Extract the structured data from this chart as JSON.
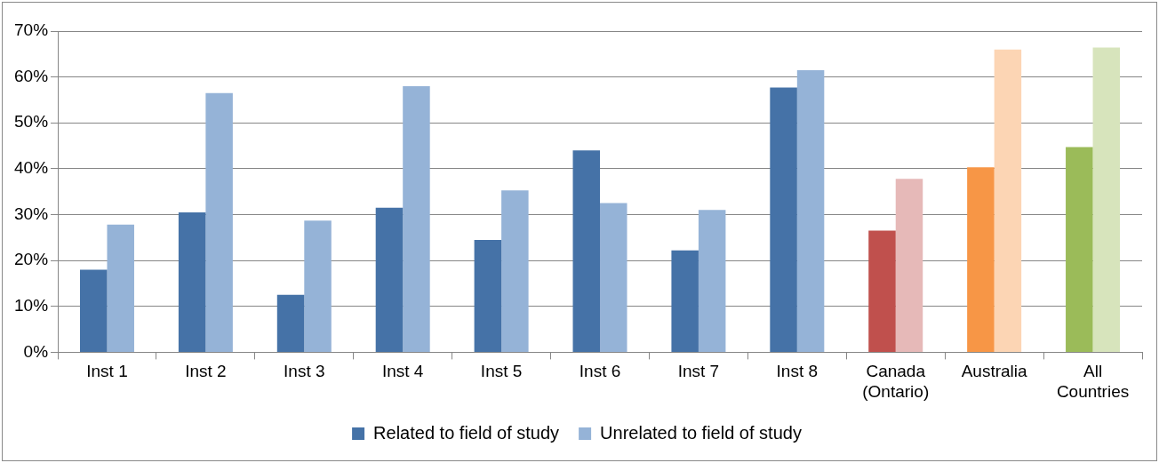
{
  "chart_data": {
    "type": "bar",
    "categories": [
      "Inst 1",
      "Inst 2",
      "Inst 3",
      "Inst 4",
      "Inst 5",
      "Inst 6",
      "Inst 7",
      "Inst 8",
      "Canada (Ontario)",
      "Australia",
      "All Countries"
    ],
    "series": [
      {
        "name": "Related to field of study",
        "color": "#4572a7",
        "colors": [
          "#4572a7",
          "#4572a7",
          "#4572a7",
          "#4572a7",
          "#4572a7",
          "#4572a7",
          "#4572a7",
          "#4572a7",
          "#c0504d",
          "#f79646",
          "#9bbb59"
        ],
        "values": [
          18,
          30.5,
          12.5,
          31.5,
          24.5,
          44,
          22.2,
          57.7,
          26.5,
          40.3,
          44.7
        ]
      },
      {
        "name": "Unrelated to field of study",
        "color": "#95b3d7",
        "colors": [
          "#95b3d7",
          "#95b3d7",
          "#95b3d7",
          "#95b3d7",
          "#95b3d7",
          "#95b3d7",
          "#95b3d7",
          "#95b3d7",
          "#e6b9b8",
          "#fcd5b4",
          "#d7e4bc"
        ],
        "values": [
          27.8,
          56.5,
          28.7,
          58,
          35.3,
          32.5,
          31,
          61.5,
          37.8,
          66,
          66.4
        ]
      }
    ],
    "ylim": [
      0,
      70
    ],
    "yticks": [
      {
        "value": 0,
        "label": "0%"
      },
      {
        "value": 10,
        "label": "10%"
      },
      {
        "value": 20,
        "label": "20%"
      },
      {
        "value": 30,
        "label": "30%"
      },
      {
        "value": 40,
        "label": "40%"
      },
      {
        "value": 50,
        "label": "50%"
      },
      {
        "value": 60,
        "label": "60%"
      },
      {
        "value": 70,
        "label": "70%"
      }
    ],
    "grid": "y",
    "legend": "bottom"
  }
}
